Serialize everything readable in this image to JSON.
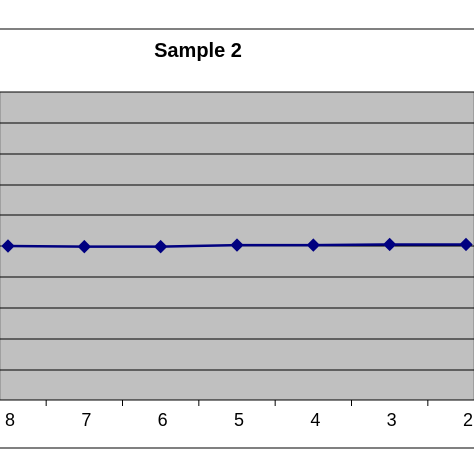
{
  "chart_data": {
    "type": "line",
    "title": "Sample 2",
    "categories": [
      "8",
      "7",
      "6",
      "5",
      "4",
      "3",
      "2"
    ],
    "series": [
      {
        "values": [
          5.0,
          4.98,
          4.98,
          5.03,
          5.03,
          5.05,
          5.05
        ]
      }
    ],
    "ylim": [
      0,
      10
    ],
    "grid": true,
    "plot_background": "#c0c0c0",
    "line_color": "#000080",
    "xlabel": "",
    "ylabel": ""
  }
}
